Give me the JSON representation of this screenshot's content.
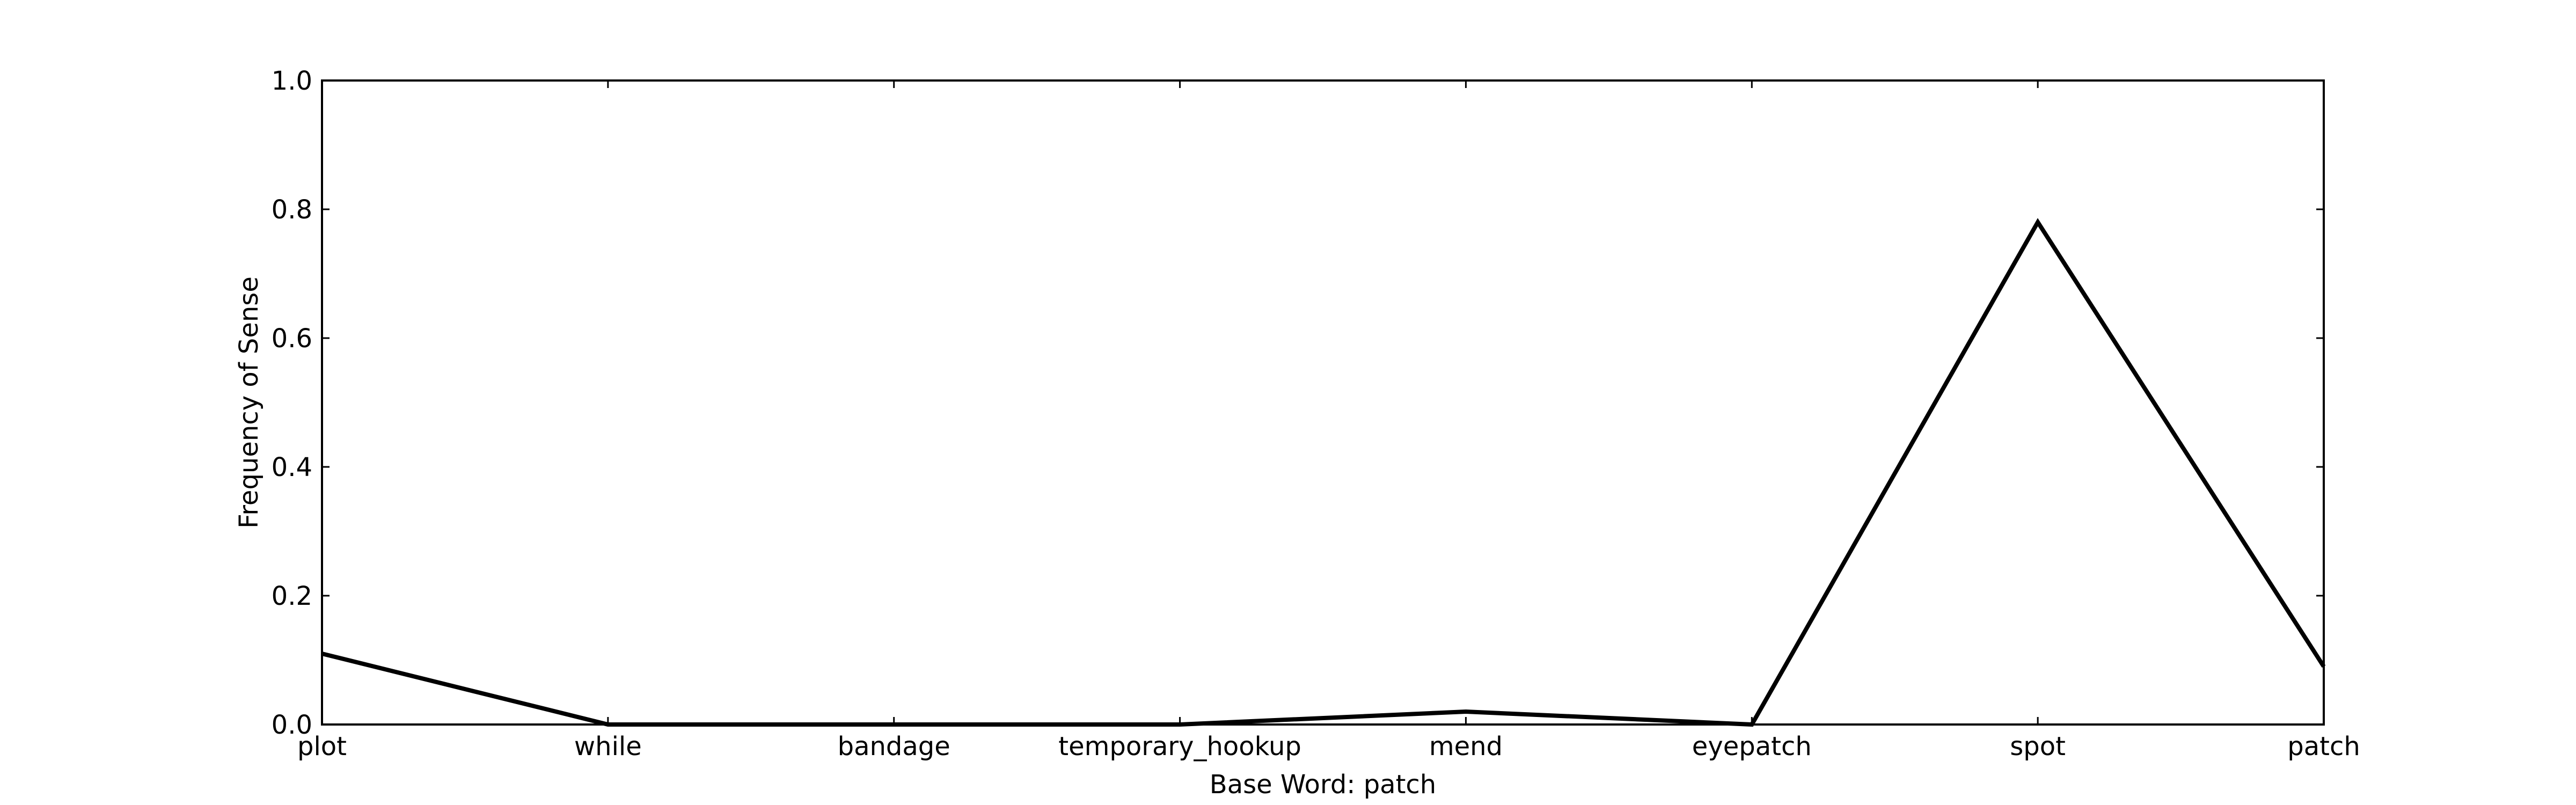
{
  "chart_data": {
    "type": "line",
    "categories": [
      "plot",
      "while",
      "bandage",
      "temporary_hookup",
      "mend",
      "eyepatch",
      "spot",
      "patch"
    ],
    "series": [
      {
        "values": [
          0.11,
          0.0,
          0.0,
          0.0,
          0.02,
          0.0,
          0.78,
          0.09
        ]
      }
    ],
    "title": "",
    "xlabel": "Base Word: patch",
    "ylabel": "Frequency of Sense",
    "ylim": [
      0.0,
      1.0
    ],
    "yticks": [
      "0.0",
      "0.2",
      "0.4",
      "0.6",
      "0.8",
      "1.0"
    ],
    "grid": false,
    "line_color": "#000000"
  }
}
